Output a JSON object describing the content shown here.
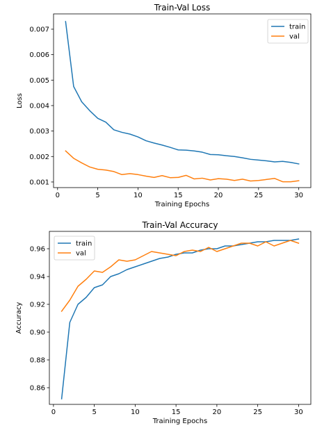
{
  "chart_data": [
    {
      "type": "line",
      "title": "Train-Val Loss",
      "xlabel": "Training Epochs",
      "ylabel": "Loss",
      "xlim": [
        -0.5,
        31.5
      ],
      "ylim": [
        0.00078,
        0.0076
      ],
      "xticks": [
        0,
        5,
        10,
        15,
        20,
        25,
        30
      ],
      "yticks": [
        0.001,
        0.002,
        0.003,
        0.004,
        0.005,
        0.006,
        0.007
      ],
      "ytick_labels": [
        "0.001",
        "0.002",
        "0.003",
        "0.004",
        "0.005",
        "0.006",
        "0.007"
      ],
      "xtick_labels": [
        "0",
        "5",
        "10",
        "15",
        "20",
        "25",
        "30"
      ],
      "legend_position": "top-right",
      "grid": false,
      "x": [
        1,
        2,
        3,
        4,
        5,
        6,
        7,
        8,
        9,
        10,
        11,
        12,
        13,
        14,
        15,
        16,
        17,
        18,
        19,
        20,
        21,
        22,
        23,
        24,
        25,
        26,
        27,
        28,
        29,
        30
      ],
      "series": [
        {
          "name": "train",
          "color": "#1f77b4",
          "values": [
            0.0073,
            0.00475,
            0.00415,
            0.0038,
            0.0035,
            0.00335,
            0.00305,
            0.00295,
            0.00288,
            0.00277,
            0.00262,
            0.00253,
            0.00245,
            0.00236,
            0.00226,
            0.00225,
            0.00222,
            0.00217,
            0.00208,
            0.00207,
            0.00203,
            0.002,
            0.00195,
            0.00189,
            0.00186,
            0.00183,
            0.00179,
            0.00181,
            0.00177,
            0.00171
          ]
        },
        {
          "name": "val",
          "color": "#ff7f0e",
          "values": [
            0.00222,
            0.00193,
            0.00175,
            0.00159,
            0.0015,
            0.00147,
            0.00141,
            0.00129,
            0.00133,
            0.00129,
            0.00123,
            0.00118,
            0.00125,
            0.00117,
            0.00118,
            0.00126,
            0.00112,
            0.00115,
            0.00108,
            0.00113,
            0.00111,
            0.00106,
            0.00111,
            0.00104,
            0.00106,
            0.0011,
            0.00114,
            0.00101,
            0.00101,
            0.00105
          ]
        }
      ]
    },
    {
      "type": "line",
      "title": "Train-Val Accuracy",
      "xlabel": "Training Epochs",
      "ylabel": "Accuracy",
      "xlim": [
        -0.5,
        31.5
      ],
      "ylim": [
        0.848,
        0.9725
      ],
      "xticks": [
        0,
        5,
        10,
        15,
        20,
        25,
        30
      ],
      "yticks": [
        0.86,
        0.88,
        0.9,
        0.92,
        0.94,
        0.96
      ],
      "ytick_labels": [
        "0.86",
        "0.88",
        "0.90",
        "0.92",
        "0.94",
        "0.96"
      ],
      "xtick_labels": [
        "0",
        "5",
        "10",
        "15",
        "20",
        "25",
        "30"
      ],
      "legend_position": "top-left",
      "grid": false,
      "x": [
        1,
        2,
        3,
        4,
        5,
        6,
        7,
        8,
        9,
        10,
        11,
        12,
        13,
        14,
        15,
        16,
        17,
        18,
        19,
        20,
        21,
        22,
        23,
        24,
        25,
        26,
        27,
        28,
        29,
        30
      ],
      "series": [
        {
          "name": "train",
          "color": "#1f77b4",
          "values": [
            0.852,
            0.907,
            0.92,
            0.925,
            0.932,
            0.934,
            0.94,
            0.942,
            0.945,
            0.947,
            0.949,
            0.951,
            0.953,
            0.954,
            0.956,
            0.957,
            0.957,
            0.959,
            0.96,
            0.96,
            0.962,
            0.962,
            0.963,
            0.964,
            0.965,
            0.965,
            0.966,
            0.966,
            0.966,
            0.967
          ]
        },
        {
          "name": "val",
          "color": "#ff7f0e",
          "values": [
            0.915,
            0.923,
            0.933,
            0.938,
            0.944,
            0.943,
            0.947,
            0.952,
            0.951,
            0.952,
            0.955,
            0.958,
            0.957,
            0.956,
            0.955,
            0.958,
            0.959,
            0.958,
            0.961,
            0.958,
            0.96,
            0.962,
            0.964,
            0.964,
            0.962,
            0.965,
            0.962,
            0.964,
            0.966,
            0.964
          ]
        }
      ]
    }
  ]
}
